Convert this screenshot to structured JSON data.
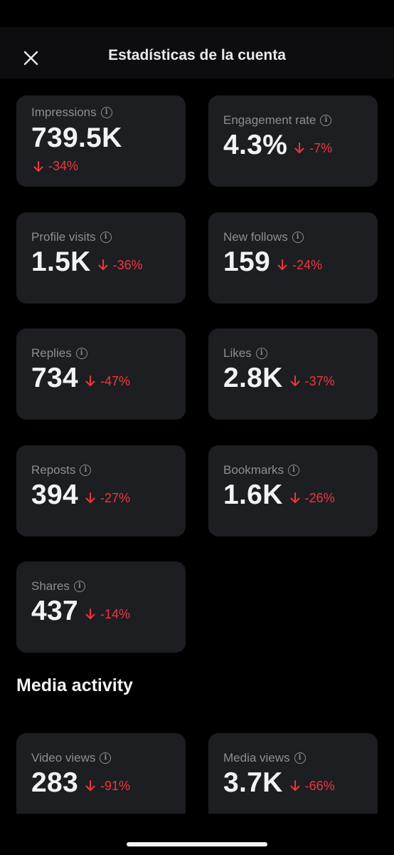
{
  "header": {
    "title": "Estadísticas de la cuenta",
    "close_icon": "close-icon"
  },
  "stats": [
    {
      "label": "Impressions",
      "value": "739.5K",
      "delta": "-34%",
      "direction": "down"
    },
    {
      "label": "Engagement rate",
      "value": "4.3%",
      "delta": "-7%",
      "direction": "down"
    },
    {
      "label": "Profile visits",
      "value": "1.5K",
      "delta": "-36%",
      "direction": "down"
    },
    {
      "label": "New follows",
      "value": "159",
      "delta": "-24%",
      "direction": "down"
    },
    {
      "label": "Replies",
      "value": "734",
      "delta": "-47%",
      "direction": "down"
    },
    {
      "label": "Likes",
      "value": "2.8K",
      "delta": "-37%",
      "direction": "down"
    },
    {
      "label": "Reposts",
      "value": "394",
      "delta": "-27%",
      "direction": "down"
    },
    {
      "label": "Bookmarks",
      "value": "1.6K",
      "delta": "-26%",
      "direction": "down"
    },
    {
      "label": "Shares",
      "value": "437",
      "delta": "-14%",
      "direction": "down"
    }
  ],
  "media": {
    "title": "Media activity",
    "stats": [
      {
        "label": "Video views",
        "value": "283",
        "delta": "-91%",
        "direction": "down"
      },
      {
        "label": "Media views",
        "value": "3.7K",
        "delta": "-66%",
        "direction": "down"
      }
    ]
  },
  "colors": {
    "background": "#000000",
    "card": "#1d1e22",
    "negative": "#f0353f",
    "label": "#8b8e94",
    "text": "#f2f3f5"
  }
}
